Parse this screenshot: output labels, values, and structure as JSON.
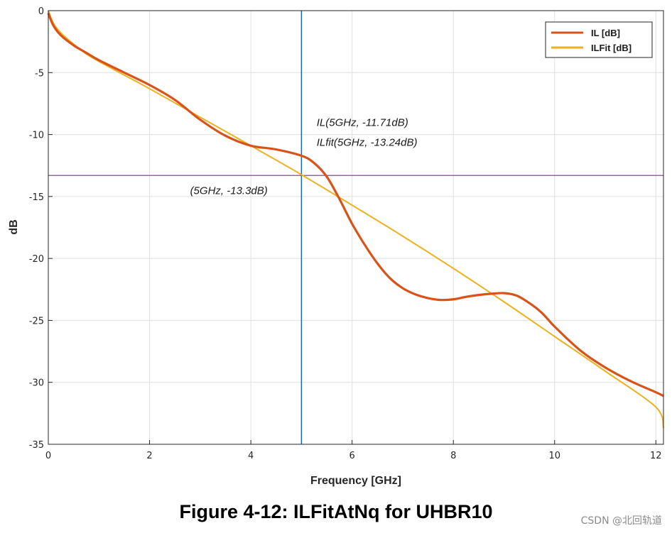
{
  "chart_data": {
    "type": "line",
    "title": "",
    "xlabel": "Frequency [GHz]",
    "ylabel": "dB",
    "xlim": [
      0,
      12.15
    ],
    "ylim": [
      -35,
      0
    ],
    "xticks": [
      0,
      2,
      4,
      6,
      8,
      10,
      12
    ],
    "yticks": [
      0,
      -5,
      -10,
      -15,
      -20,
      -25,
      -30,
      -35
    ],
    "grid": true,
    "legend_placement": "top-right",
    "series": [
      {
        "name": "IL [dB]",
        "color": "#d95319",
        "x": [
          0,
          0.1,
          0.25,
          0.5,
          0.75,
          1.0,
          1.5,
          2.0,
          2.5,
          3.0,
          3.5,
          4.0,
          4.5,
          5.0,
          5.25,
          5.5,
          5.75,
          6.0,
          6.25,
          6.5,
          6.75,
          7.0,
          7.25,
          7.5,
          7.75,
          8.0,
          8.25,
          8.5,
          8.75,
          9.0,
          9.25,
          9.5,
          9.75,
          10.0,
          10.5,
          11.0,
          11.5,
          12.0,
          12.15
        ],
        "y": [
          -0.2,
          -1.2,
          -2.0,
          -2.8,
          -3.4,
          -4.0,
          -5.0,
          -6.0,
          -7.2,
          -8.8,
          -10.1,
          -10.9,
          -11.2,
          -11.71,
          -12.3,
          -13.4,
          -15.2,
          -17.2,
          -18.9,
          -20.4,
          -21.6,
          -22.4,
          -22.9,
          -23.2,
          -23.35,
          -23.3,
          -23.1,
          -22.95,
          -22.85,
          -22.8,
          -23.0,
          -23.6,
          -24.4,
          -25.5,
          -27.4,
          -28.8,
          -29.9,
          -30.8,
          -31.1
        ]
      },
      {
        "name": "ILFit [dB]",
        "color": "#edb120",
        "x": [
          0,
          0.1,
          0.25,
          0.5,
          0.75,
          1.0,
          1.5,
          2.0,
          3.0,
          4.0,
          5.0,
          6.0,
          7.0,
          8.0,
          9.0,
          10.0,
          11.0,
          12.0,
          12.15
        ],
        "y": [
          0,
          -1.0,
          -1.8,
          -2.7,
          -3.5,
          -4.1,
          -5.2,
          -6.3,
          -8.6,
          -10.9,
          -13.24,
          -15.7,
          -18.2,
          -20.8,
          -23.5,
          -26.3,
          -29.1,
          -32.0,
          -33.7
        ]
      }
    ],
    "markers": {
      "vertical_line": {
        "x": 5,
        "color": "#0072bd"
      },
      "horizontal_line": {
        "y": -13.3,
        "color": "#7e2f8e"
      }
    },
    "annotations": {
      "il": {
        "text": "IL(5GHz, -11.71dB)",
        "x": 5.3,
        "y": -9.3
      },
      "ilfit": {
        "text": "ILfit(5GHz, -13.24dB)",
        "x": 5.3,
        "y": -10.9
      },
      "cross": {
        "text": "(5GHz, -13.3dB)",
        "x": 2.8,
        "y": -14.8
      }
    }
  },
  "caption": "Figure 4-12: ILFitAtNq for UHBR10",
  "watermark": "CSDN @北回轨道"
}
